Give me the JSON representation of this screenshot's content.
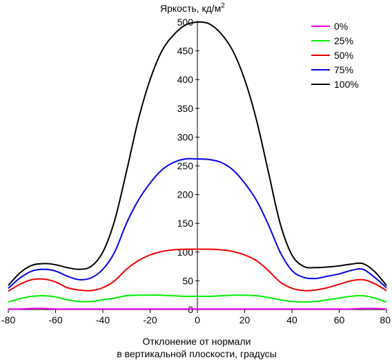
{
  "chart_data": {
    "type": "line",
    "title": "",
    "ylabel": "Яркость, кд/м",
    "ylabel_superscript": "2",
    "xlabel_line1": "Отклонение от нормали",
    "xlabel_line2": "в вертикальной плоскости, градусы",
    "xlim": [
      -80,
      80
    ],
    "ylim": [
      0,
      500
    ],
    "xticks": [
      -80,
      -60,
      -40,
      -20,
      0,
      20,
      40,
      60,
      80
    ],
    "yticks": [
      0,
      50,
      100,
      150,
      200,
      250,
      300,
      350,
      400,
      450,
      500
    ],
    "grid": false,
    "legend_position": "top-right",
    "x": [
      -80,
      -75,
      -70,
      -65,
      -60,
      -55,
      -50,
      -45,
      -40,
      -35,
      -30,
      -25,
      -20,
      -15,
      -10,
      -5,
      0,
      5,
      10,
      15,
      20,
      25,
      30,
      35,
      40,
      45,
      50,
      55,
      60,
      65,
      70,
      75,
      80
    ],
    "series": [
      {
        "name": "0%",
        "color": "#ff00ff",
        "values": [
          1,
          1,
          2,
          2,
          1,
          1,
          1,
          1,
          1,
          1,
          1,
          1,
          1,
          1,
          1,
          1,
          1,
          1,
          1,
          1,
          1,
          1,
          1,
          1,
          1,
          1,
          1,
          1,
          1,
          1,
          2,
          2,
          1
        ]
      },
      {
        "name": "25%",
        "color": "#00ee00",
        "values": [
          13,
          19,
          23,
          24,
          22,
          17,
          14,
          14,
          17,
          20,
          24,
          25,
          25,
          25,
          24,
          23,
          23,
          23,
          24,
          25,
          25,
          24,
          21,
          17,
          14,
          13,
          14,
          17,
          20,
          23,
          24,
          20,
          13
        ]
      },
      {
        "name": "50%",
        "color": "#ee0000",
        "values": [
          32,
          44,
          52,
          53,
          48,
          38,
          34,
          33,
          38,
          50,
          70,
          85,
          95,
          101,
          104,
          105,
          105,
          105,
          104,
          101,
          95,
          85,
          68,
          48,
          37,
          33,
          34,
          38,
          44,
          50,
          52,
          45,
          33
        ]
      },
      {
        "name": "75%",
        "color": "#0000ee",
        "values": [
          37,
          55,
          67,
          70,
          67,
          58,
          52,
          55,
          70,
          100,
          150,
          190,
          220,
          243,
          256,
          262,
          262,
          261,
          256,
          243,
          220,
          190,
          148,
          100,
          68,
          56,
          54,
          58,
          62,
          68,
          70,
          56,
          38
        ]
      },
      {
        "name": "100%",
        "color": "#000000",
        "values": [
          42,
          64,
          77,
          80,
          78,
          73,
          70,
          75,
          100,
          155,
          240,
          330,
          400,
          450,
          478,
          495,
          500,
          497,
          480,
          450,
          400,
          330,
          240,
          150,
          95,
          75,
          73,
          74,
          76,
          79,
          80,
          66,
          42
        ]
      }
    ]
  }
}
